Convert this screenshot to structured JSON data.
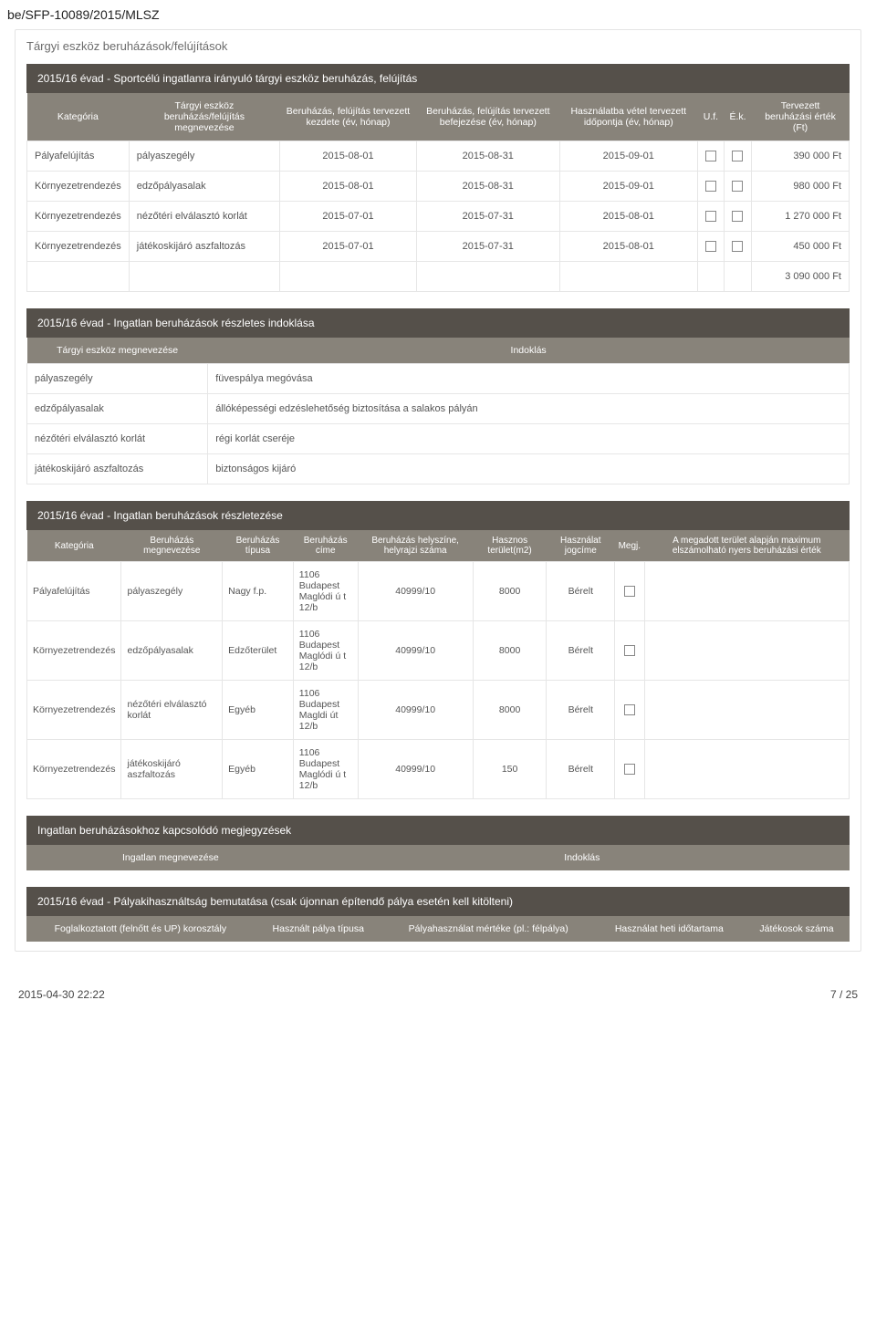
{
  "doc_ref": "be/SFP-10089/2015/MLSZ",
  "main_title": "Tárgyi eszköz beruházások/felújítások",
  "band1": "2015/16 évad - Sportcélú ingatlanra irányuló tárgyi eszköz beruházás, felújítás",
  "table1": {
    "headers": [
      "Kategória",
      "Tárgyi eszköz beruházás/felújítás megnevezése",
      "Beruházás, felújítás tervezett kezdete (év, hónap)",
      "Beruházás, felújítás tervezett befejezése (év, hónap)",
      "Használatba vétel tervezett időpontja (év, hónap)",
      "U.f.",
      "É.k.",
      "Tervezett beruházási érték (Ft)"
    ],
    "rows": [
      [
        "Pályafelújítás",
        "pályaszegély",
        "2015-08-01",
        "2015-08-31",
        "2015-09-01",
        "",
        "",
        "390 000 Ft"
      ],
      [
        "Környezetrendezés",
        "edzőpályasalak",
        "2015-08-01",
        "2015-08-31",
        "2015-09-01",
        "",
        "",
        "980 000 Ft"
      ],
      [
        "Környezetrendezés",
        "nézőtéri elválasztó korlát",
        "2015-07-01",
        "2015-07-31",
        "2015-08-01",
        "",
        "",
        "1 270 000 Ft"
      ],
      [
        "Környezetrendezés",
        "játékoskijáró aszfaltozás",
        "2015-07-01",
        "2015-07-31",
        "2015-08-01",
        "",
        "",
        "450 000 Ft"
      ]
    ],
    "total": "3 090 000 Ft"
  },
  "band2": "2015/16 évad - Ingatlan beruházások részletes indoklása",
  "table2": {
    "headers": [
      "Tárgyi eszköz megnevezése",
      "Indoklás"
    ],
    "rows": [
      [
        "pályaszegély",
        "füvespálya megóvása"
      ],
      [
        "edzőpályasalak",
        "állóképességi edzéslehetőség biztosítása a salakos pályán"
      ],
      [
        "nézőtéri elválasztó korlát",
        "régi korlát cseréje"
      ],
      [
        "játékoskijáró aszfaltozás",
        "biztonságos kijáró"
      ]
    ]
  },
  "band3": "2015/16 évad - Ingatlan beruházások részletezése",
  "table3": {
    "headers": [
      "Kategória",
      "Beruházás megnevezése",
      "Beruházás típusa",
      "Beruházás címe",
      "Beruházás helyszíne, helyrajzi száma",
      "Hasznos terület(m2)",
      "Használat jogcíme",
      "Megj.",
      "A megadott terület alapján maximum elszámolható nyers beruházási érték"
    ],
    "rows": [
      [
        "Pályafelújítás",
        "pályaszegély",
        "Nagy f.p.",
        "1106 Budapest Maglódi ú t 12/b",
        "40999/10",
        "8000",
        "Bérelt",
        "",
        ""
      ],
      [
        "Környezetrendezés",
        "edzőpályasalak",
        "Edzőterület",
        "1106 Budapest Maglódi ú t 12/b",
        "40999/10",
        "8000",
        "Bérelt",
        "",
        ""
      ],
      [
        "Környezetrendezés",
        "nézőtéri elválasztó korlát",
        "Egyéb",
        "1106 Budapest Magldi út 12/b",
        "40999/10",
        "8000",
        "Bérelt",
        "",
        ""
      ],
      [
        "Környezetrendezés",
        "játékoskijáró aszfaltozás",
        "Egyéb",
        "1106 Budapest Maglódi ú t 12/b",
        "40999/10",
        "150",
        "Bérelt",
        "",
        ""
      ]
    ]
  },
  "band4": "Ingatlan beruházásokhoz kapcsolódó megjegyzések",
  "table4": {
    "headers": [
      "Ingatlan megnevezése",
      "Indoklás"
    ]
  },
  "band5": "2015/16 évad - Pályakihasználtság bemutatása (csak újonnan építendő pálya esetén kell kitölteni)",
  "table5": {
    "headers": [
      "Foglalkoztatott (felnőtt és UP) korosztály",
      "Használt pálya típusa",
      "Pályahasználat mértéke (pl.: félpálya)",
      "Használat heti időtartama",
      "Játékosok száma"
    ]
  },
  "footer": {
    "left": "2015-04-30 22:22",
    "right": "7 / 25"
  },
  "colors": {
    "band_dark": "#55504a",
    "band_mid": "#88837a",
    "border": "#e6e6e6",
    "text": "#444444"
  }
}
